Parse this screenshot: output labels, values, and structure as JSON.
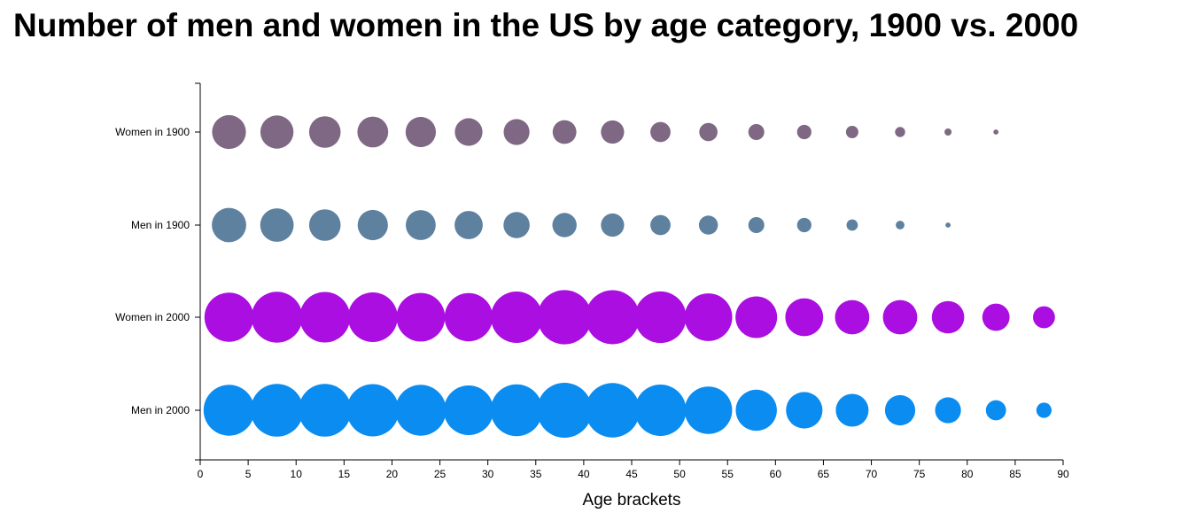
{
  "chart_data": {
    "type": "scatter",
    "title": "Number of men and women in the US by age category, 1900 vs. 2000",
    "xlabel": "Age brackets",
    "ylabel": "",
    "xlim": [
      0,
      90
    ],
    "x_ticks": [
      0,
      5,
      10,
      15,
      20,
      25,
      30,
      35,
      40,
      45,
      50,
      55,
      60,
      65,
      70,
      75,
      80,
      85,
      90
    ],
    "categories": [
      "Women in 1900",
      "Men in 1900",
      "Women in 2000",
      "Men in 2000"
    ],
    "x": [
      3,
      8,
      13,
      18,
      23,
      28,
      33,
      38,
      43,
      48,
      53,
      58,
      63,
      68,
      73,
      78,
      83,
      88
    ],
    "series": [
      {
        "name": "Women in 1900",
        "color": "#7e6883",
        "values": [
          4.5,
          4.3,
          3.9,
          3.7,
          3.6,
          3.0,
          2.6,
          2.2,
          2.1,
          1.6,
          1.3,
          1.0,
          0.8,
          0.6,
          0.4,
          0.2,
          0.1,
          0.0
        ]
      },
      {
        "name": "Men in 1900",
        "color": "#5e819f",
        "values": [
          4.6,
          4.4,
          3.9,
          3.6,
          3.5,
          3.1,
          2.7,
          2.3,
          2.1,
          1.6,
          1.4,
          1.0,
          0.8,
          0.5,
          0.3,
          0.1,
          0.0,
          0.0
        ]
      },
      {
        "name": "Women in 2000",
        "color": "#aa0ee0",
        "values": [
          9.4,
          10.1,
          10.0,
          9.6,
          9.2,
          9.1,
          10.3,
          11.5,
          11.4,
          10.4,
          8.9,
          6.8,
          5.6,
          4.6,
          4.6,
          4.1,
          2.9,
          1.9
        ]
      },
      {
        "name": "Men in 2000",
        "color": "#0b8cf0",
        "values": [
          10.1,
          10.8,
          10.8,
          10.7,
          10.1,
          9.6,
          10.5,
          11.8,
          11.6,
          10.3,
          8.8,
          6.6,
          5.2,
          4.2,
          3.6,
          2.6,
          1.6,
          0.9
        ]
      }
    ]
  }
}
